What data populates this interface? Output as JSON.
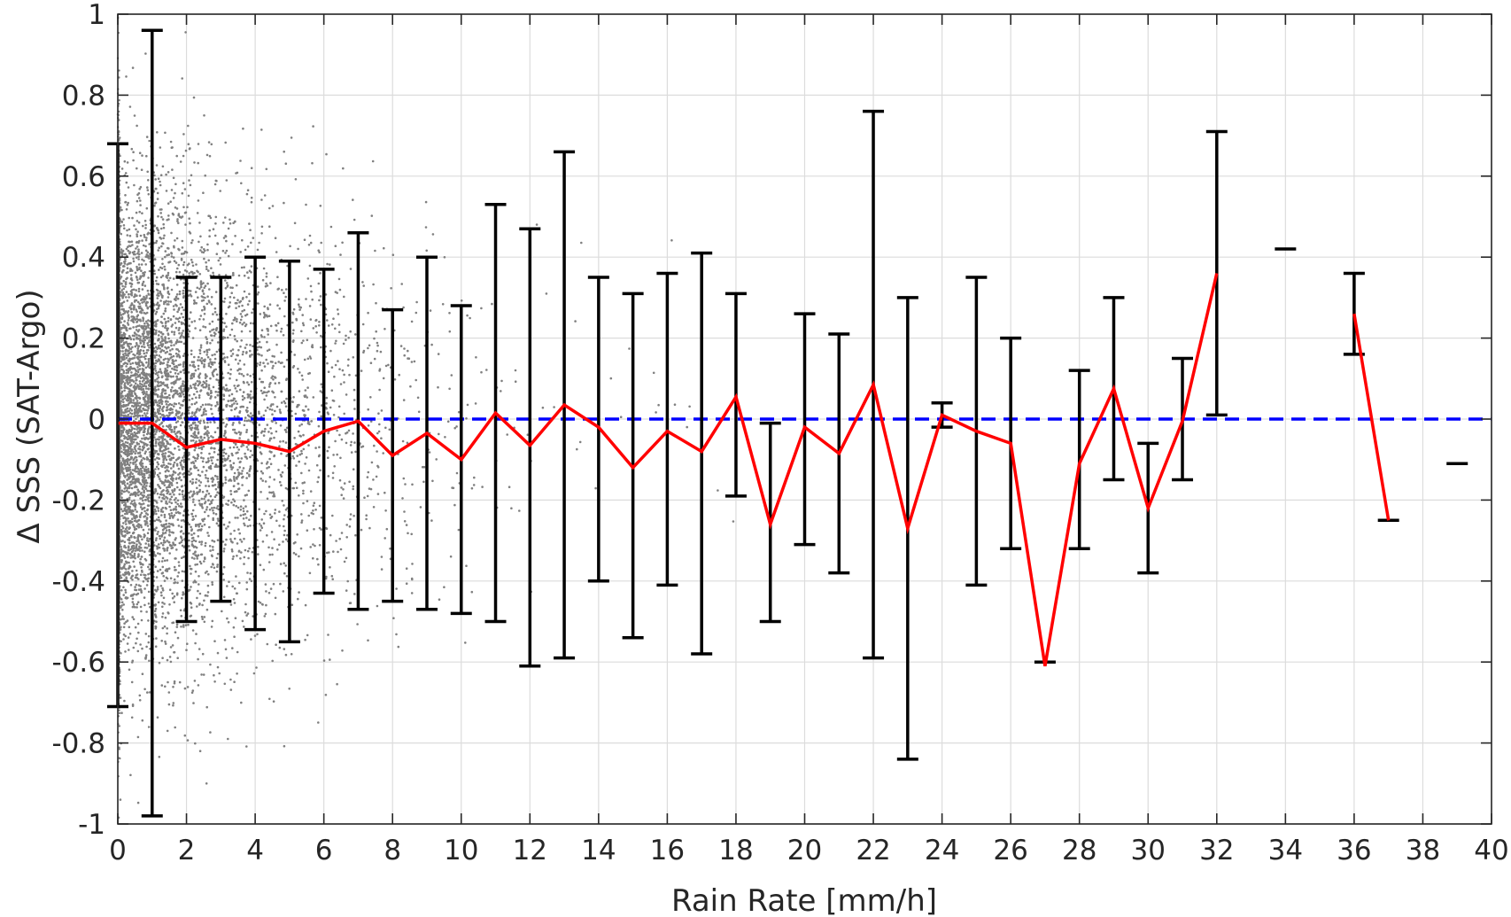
{
  "chart_data": {
    "type": "scatter",
    "title": "",
    "xlabel": "Rain Rate [mm/h]",
    "ylabel": "Δ SSS (SAT-Argo)",
    "xlim": [
      0,
      40
    ],
    "ylim": [
      -1,
      1
    ],
    "grid": true,
    "legend": "none",
    "x_ticks": [
      "0",
      "2",
      "4",
      "6",
      "8",
      "10",
      "12",
      "14",
      "16",
      "18",
      "20",
      "22",
      "24",
      "26",
      "28",
      "30",
      "32",
      "34",
      "36",
      "38",
      "40"
    ],
    "y_ticks": [
      "-1",
      "-0.8",
      "-0.6",
      "-0.4",
      "-0.2",
      "0",
      "0.2",
      "0.4",
      "0.6",
      "0.8",
      "1"
    ],
    "colors": {
      "scatter": "#808080",
      "mean_line": "#ff0000",
      "errorbars": "#000000",
      "zero_line": "#0000ff",
      "grid": "#dcdcdc",
      "axes": "#262626"
    },
    "zero_reference": {
      "y": 0,
      "style": "dashed"
    },
    "scatter_points": {
      "description_source": "raw samples (gray dots)",
      "approx_count": 6000
    },
    "errorbars": [
      {
        "x": 0,
        "mean": -0.01,
        "low": -0.71,
        "high": 0.68
      },
      {
        "x": 1,
        "mean": -0.01,
        "low": -0.98,
        "high": 0.96
      },
      {
        "x": 2,
        "mean": -0.07,
        "low": -0.5,
        "high": 0.35
      },
      {
        "x": 3,
        "mean": -0.05,
        "low": -0.45,
        "high": 0.35
      },
      {
        "x": 4,
        "mean": -0.06,
        "low": -0.52,
        "high": 0.4
      },
      {
        "x": 5,
        "mean": -0.08,
        "low": -0.55,
        "high": 0.39
      },
      {
        "x": 6,
        "mean": -0.03,
        "low": -0.43,
        "high": 0.37
      },
      {
        "x": 7,
        "mean": -0.005,
        "low": -0.47,
        "high": 0.46
      },
      {
        "x": 8,
        "mean": -0.09,
        "low": -0.45,
        "high": 0.27
      },
      {
        "x": 9,
        "mean": -0.035,
        "low": -0.47,
        "high": 0.4
      },
      {
        "x": 10,
        "mean": -0.1,
        "low": -0.48,
        "high": 0.28
      },
      {
        "x": 11,
        "mean": 0.015,
        "low": -0.5,
        "high": 0.53
      },
      {
        "x": 12,
        "mean": -0.065,
        "low": -0.61,
        "high": 0.47
      },
      {
        "x": 13,
        "mean": 0.035,
        "low": -0.59,
        "high": 0.66
      },
      {
        "x": 14,
        "mean": -0.02,
        "low": -0.4,
        "high": 0.35
      },
      {
        "x": 15,
        "mean": -0.12,
        "low": -0.54,
        "high": 0.31
      },
      {
        "x": 16,
        "mean": -0.03,
        "low": -0.41,
        "high": 0.36
      },
      {
        "x": 17,
        "mean": -0.08,
        "low": -0.58,
        "high": 0.41
      },
      {
        "x": 18,
        "mean": 0.055,
        "low": -0.19,
        "high": 0.31
      },
      {
        "x": 19,
        "mean": -0.26,
        "low": -0.5,
        "high": -0.01
      },
      {
        "x": 20,
        "mean": -0.02,
        "low": -0.31,
        "high": 0.26
      },
      {
        "x": 21,
        "mean": -0.085,
        "low": -0.38,
        "high": 0.21
      },
      {
        "x": 22,
        "mean": 0.085,
        "low": -0.59,
        "high": 0.76
      },
      {
        "x": 23,
        "mean": -0.27,
        "low": -0.84,
        "high": 0.3
      },
      {
        "x": 24,
        "mean": 0.01,
        "low": -0.02,
        "high": 0.04
      },
      {
        "x": 25,
        "mean": -0.03,
        "low": -0.41,
        "high": 0.35
      },
      {
        "x": 26,
        "mean": -0.06,
        "low": -0.32,
        "high": 0.2
      },
      {
        "x": 27,
        "mean": -0.61,
        "low": -0.6,
        "high": -0.6
      },
      {
        "x": 28,
        "mean": -0.11,
        "low": -0.32,
        "high": 0.12
      },
      {
        "x": 29,
        "mean": 0.075,
        "low": -0.15,
        "high": 0.3
      },
      {
        "x": 30,
        "mean": -0.22,
        "low": -0.38,
        "high": -0.06
      },
      {
        "x": 31,
        "mean": -0.005,
        "low": -0.15,
        "high": 0.15
      },
      {
        "x": 32,
        "mean": 0.36,
        "low": 0.01,
        "high": 0.71
      },
      {
        "x": 34,
        "mean": 0.42,
        "low": 0.42,
        "high": 0.42
      },
      {
        "x": 36,
        "mean": 0.26,
        "low": 0.16,
        "high": 0.36
      },
      {
        "x": 37,
        "mean": -0.25,
        "low": -0.25,
        "high": -0.25
      },
      {
        "x": 39,
        "mean": -0.11,
        "low": -0.11,
        "high": -0.11
      }
    ],
    "mean_line_segments": [
      [
        [
          0,
          -0.01
        ],
        [
          1,
          -0.01
        ],
        [
          2,
          -0.07
        ],
        [
          3,
          -0.05
        ],
        [
          4,
          -0.06
        ],
        [
          5,
          -0.08
        ],
        [
          6,
          -0.03
        ],
        [
          7,
          -0.005
        ],
        [
          8,
          -0.09
        ],
        [
          9,
          -0.035
        ],
        [
          10,
          -0.1
        ],
        [
          11,
          0.015
        ],
        [
          12,
          -0.065
        ],
        [
          13,
          0.035
        ],
        [
          14,
          -0.02
        ],
        [
          15,
          -0.12
        ],
        [
          16,
          -0.03
        ],
        [
          17,
          -0.08
        ],
        [
          18,
          0.055
        ],
        [
          19,
          -0.26
        ],
        [
          20,
          -0.02
        ],
        [
          21,
          -0.085
        ],
        [
          22,
          0.085
        ],
        [
          23,
          -0.27
        ],
        [
          24,
          0.01
        ],
        [
          25,
          -0.03
        ],
        [
          26,
          -0.06
        ],
        [
          27,
          -0.61
        ],
        [
          28,
          -0.11
        ],
        [
          29,
          0.075
        ],
        [
          30,
          -0.22
        ],
        [
          31,
          -0.005
        ],
        [
          32,
          0.36
        ]
      ],
      [
        [
          36,
          0.26
        ],
        [
          37,
          -0.25
        ]
      ]
    ]
  }
}
